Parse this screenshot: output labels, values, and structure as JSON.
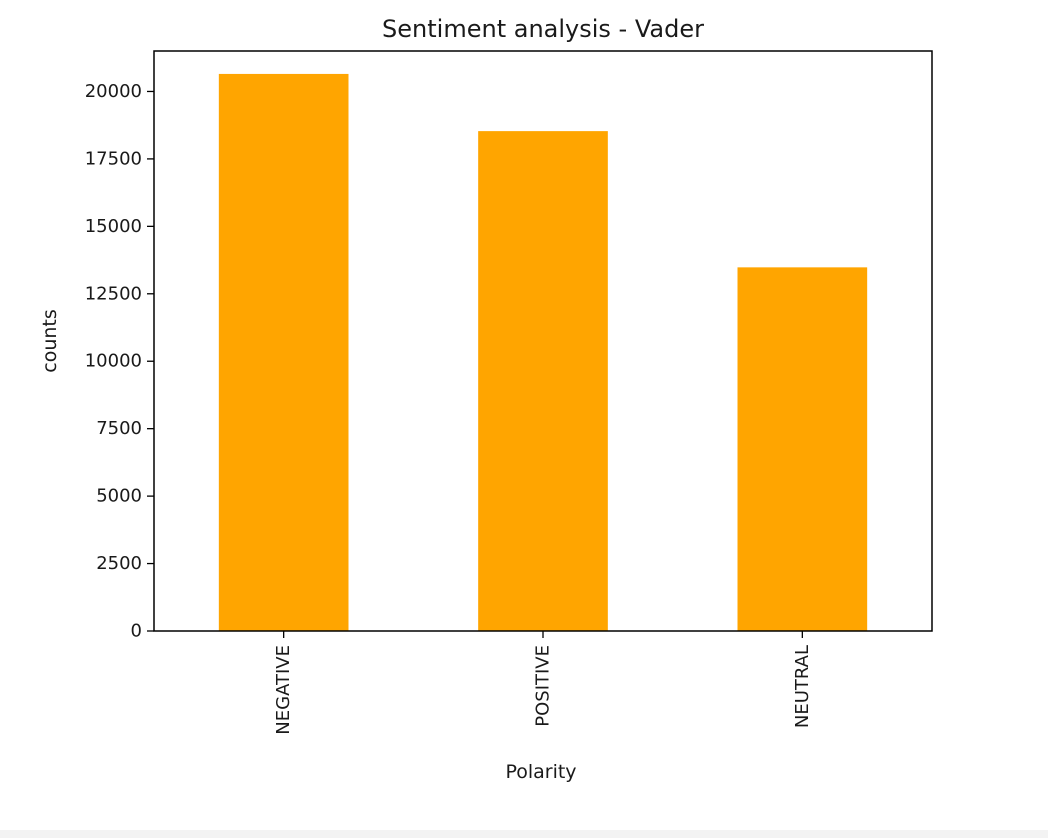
{
  "chart_data": {
    "type": "bar",
    "title": "Sentiment analysis - Vader",
    "xlabel": "Polarity",
    "ylabel": "counts",
    "categories": [
      "NEGATIVE",
      "POSITIVE",
      "NEUTRAL"
    ],
    "values": [
      20650,
      18530,
      13480
    ],
    "ylim": [
      0,
      21500
    ],
    "yticks": [
      0,
      2500,
      5000,
      7500,
      10000,
      12500,
      15000,
      17500,
      20000
    ],
    "ytick_labels": [
      "0",
      "2500",
      "5000",
      "7500",
      "10000",
      "12500",
      "15000",
      "17500",
      "20000"
    ],
    "bar_color": "#ffa500",
    "grid": false,
    "legend": "none"
  }
}
